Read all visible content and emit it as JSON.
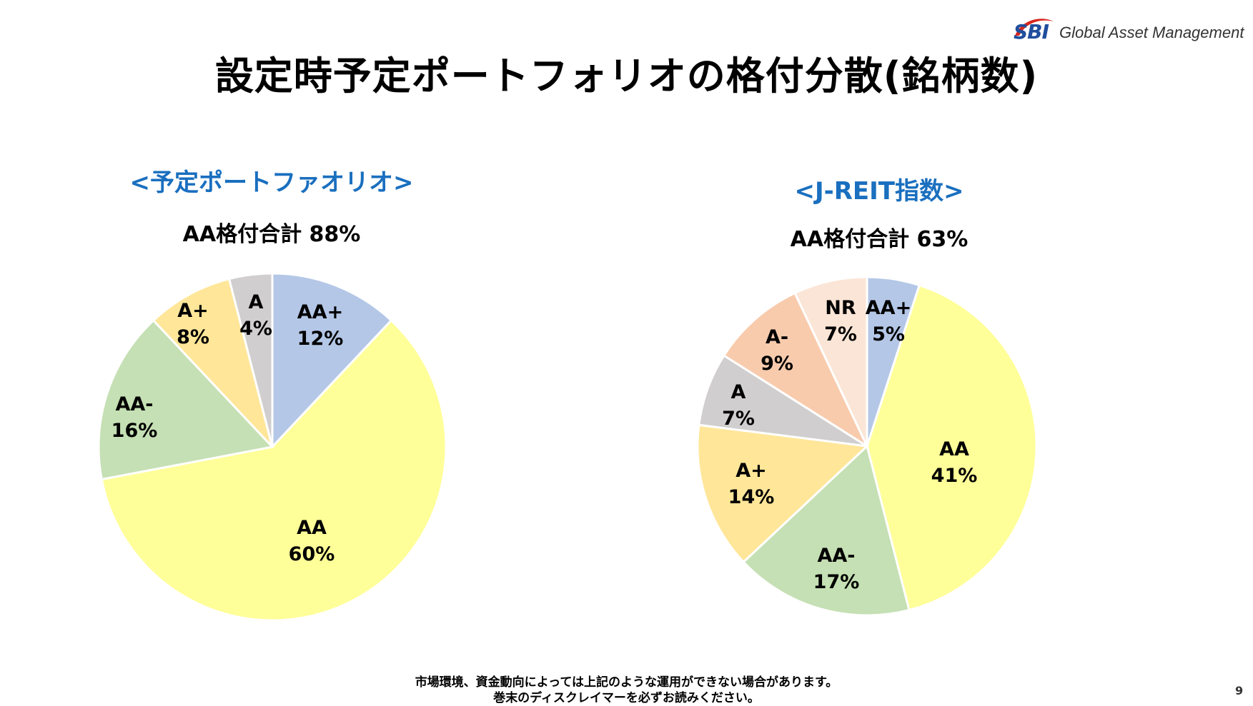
{
  "logo": {
    "brand": "SBI",
    "text": "Global Asset Management",
    "colors": {
      "blue": "#1f4e9c",
      "red": "#d7261e"
    }
  },
  "title": "設定時予定ポートフォリオの格付分散(銘柄数)",
  "chart_data": [
    {
      "type": "pie",
      "title": "<予定ポートファオリオ>",
      "subtitle": "AA格付合計 88%",
      "slices": [
        {
          "name": "AA+",
          "value": 12,
          "label": "12%",
          "color": "#b4c7e7"
        },
        {
          "name": "AA",
          "value": 60,
          "label": "60%",
          "color": "#ffff99"
        },
        {
          "name": "AA-",
          "value": 16,
          "label": "16%",
          "color": "#c5e0b4"
        },
        {
          "name": "A+",
          "value": 8,
          "label": "8%",
          "color": "#ffe699"
        },
        {
          "name": "A",
          "value": 4,
          "label": "4%",
          "color": "#d0cece"
        }
      ]
    },
    {
      "type": "pie",
      "title": "<J-REIT指数>",
      "subtitle": "AA格付合計 63%",
      "slices": [
        {
          "name": "AA+",
          "value": 5,
          "label": "5%",
          "color": "#b4c7e7"
        },
        {
          "name": "AA",
          "value": 41,
          "label": "41%",
          "color": "#ffff99"
        },
        {
          "name": "AA-",
          "value": 17,
          "label": "17%",
          "color": "#c5e0b4"
        },
        {
          "name": "A+",
          "value": 14,
          "label": "14%",
          "color": "#ffe699"
        },
        {
          "name": "A",
          "value": 7,
          "label": "7%",
          "color": "#d0cece"
        },
        {
          "name": "A-",
          "value": 9,
          "label": "9%",
          "color": "#f8cbad"
        },
        {
          "name": "NR",
          "value": 7,
          "label": "7%",
          "color": "#fbe5d6"
        }
      ]
    }
  ],
  "footer": {
    "line1": "市場環境、資金動向によっては上記のような運用ができない場合があります。",
    "line2": "巻末のディスクレイマーを必ずお読みください。"
  },
  "page_number": "9"
}
